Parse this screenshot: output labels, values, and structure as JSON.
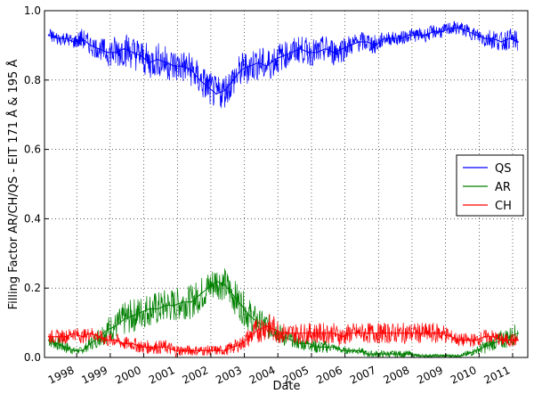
{
  "chart_data": {
    "type": "line",
    "xlabel": "Date",
    "ylabel": "Filling Factor AR/CH/QS - EIT 171 Å & 195 Å",
    "xlim": [
      "1997-01-15",
      "2011-06-15"
    ],
    "ylim": [
      0,
      1.0
    ],
    "x_tick_labels": [
      "1998",
      "1999",
      "2000",
      "2001",
      "2002",
      "2003",
      "2004",
      "2005",
      "2006",
      "2007",
      "2008",
      "2009",
      "2010",
      "2011"
    ],
    "x_ticks": [
      "1998-01-01",
      "1999-01-01",
      "2000-01-01",
      "2001-01-01",
      "2002-01-01",
      "2003-01-01",
      "2004-01-01",
      "2005-01-01",
      "2006-01-01",
      "2007-01-01",
      "2008-01-01",
      "2009-01-01",
      "2010-01-01",
      "2011-01-01"
    ],
    "y_tick_labels": [
      "0.0",
      "0.2",
      "0.4",
      "0.6",
      "0.8",
      "1.0"
    ],
    "y_ticks": [
      0,
      0.2,
      0.4,
      0.6,
      0.8,
      1.0
    ],
    "grid": true,
    "legend_position": "center-right",
    "x": [
      "1997-03-01",
      "1997-06-01",
      "1997-09-01",
      "1997-12-01",
      "1998-03-01",
      "1998-06-01",
      "1998-09-01",
      "1998-12-01",
      "1999-03-01",
      "1999-06-01",
      "1999-09-01",
      "1999-12-01",
      "2000-03-01",
      "2000-06-01",
      "2000-09-01",
      "2000-12-01",
      "2001-03-01",
      "2001-06-01",
      "2001-09-01",
      "2001-12-01",
      "2002-03-01",
      "2002-06-01",
      "2002-09-01",
      "2002-12-01",
      "2003-03-01",
      "2003-06-01",
      "2003-09-01",
      "2003-12-01",
      "2004-03-01",
      "2004-06-01",
      "2004-09-01",
      "2004-12-01",
      "2005-03-01",
      "2005-06-01",
      "2005-09-01",
      "2005-12-01",
      "2006-03-01",
      "2006-06-01",
      "2006-09-01",
      "2006-12-01",
      "2007-03-01",
      "2007-06-01",
      "2007-09-01",
      "2007-12-01",
      "2008-03-01",
      "2008-06-01",
      "2008-09-01",
      "2008-12-01",
      "2009-03-01",
      "2009-06-01",
      "2009-09-01",
      "2009-12-01",
      "2010-03-01",
      "2010-06-01",
      "2010-09-01",
      "2010-12-01",
      "2011-03-01"
    ],
    "series": [
      {
        "name": "QS",
        "color": "#0000ff",
        "values": [
          0.93,
          0.92,
          0.92,
          0.91,
          0.92,
          0.9,
          0.89,
          0.88,
          0.88,
          0.89,
          0.88,
          0.87,
          0.85,
          0.86,
          0.85,
          0.84,
          0.84,
          0.83,
          0.8,
          0.78,
          0.76,
          0.77,
          0.8,
          0.83,
          0.84,
          0.85,
          0.84,
          0.86,
          0.87,
          0.88,
          0.89,
          0.88,
          0.88,
          0.89,
          0.88,
          0.89,
          0.9,
          0.91,
          0.91,
          0.9,
          0.92,
          0.92,
          0.92,
          0.93,
          0.93,
          0.93,
          0.94,
          0.94,
          0.95,
          0.95,
          0.94,
          0.93,
          0.92,
          0.92,
          0.91,
          0.92,
          0.91
        ],
        "spread": [
          0.02,
          0.02,
          0.02,
          0.02,
          0.03,
          0.03,
          0.03,
          0.04,
          0.05,
          0.05,
          0.05,
          0.05,
          0.05,
          0.05,
          0.05,
          0.05,
          0.05,
          0.05,
          0.05,
          0.05,
          0.05,
          0.05,
          0.05,
          0.05,
          0.05,
          0.05,
          0.05,
          0.05,
          0.04,
          0.04,
          0.04,
          0.04,
          0.04,
          0.04,
          0.04,
          0.04,
          0.03,
          0.03,
          0.03,
          0.03,
          0.02,
          0.02,
          0.02,
          0.02,
          0.02,
          0.02,
          0.02,
          0.02,
          0.02,
          0.02,
          0.02,
          0.02,
          0.03,
          0.03,
          0.03,
          0.03,
          0.03
        ]
      },
      {
        "name": "AR",
        "color": "#008000",
        "values": [
          0.05,
          0.04,
          0.03,
          0.02,
          0.02,
          0.04,
          0.06,
          0.08,
          0.09,
          0.11,
          0.12,
          0.13,
          0.14,
          0.14,
          0.15,
          0.15,
          0.16,
          0.16,
          0.18,
          0.2,
          0.22,
          0.21,
          0.18,
          0.15,
          0.12,
          0.1,
          0.09,
          0.08,
          0.06,
          0.05,
          0.04,
          0.04,
          0.03,
          0.03,
          0.03,
          0.02,
          0.02,
          0.02,
          0.01,
          0.01,
          0.01,
          0.01,
          0.01,
          0.01,
          0.005,
          0.005,
          0.005,
          0.005,
          0.005,
          0.005,
          0.01,
          0.02,
          0.03,
          0.04,
          0.05,
          0.06,
          0.07
        ],
        "spread": [
          0.02,
          0.02,
          0.02,
          0.01,
          0.01,
          0.02,
          0.03,
          0.04,
          0.04,
          0.05,
          0.05,
          0.05,
          0.05,
          0.05,
          0.05,
          0.05,
          0.05,
          0.05,
          0.05,
          0.05,
          0.05,
          0.05,
          0.05,
          0.05,
          0.05,
          0.04,
          0.04,
          0.03,
          0.03,
          0.02,
          0.02,
          0.02,
          0.02,
          0.02,
          0.01,
          0.01,
          0.01,
          0.01,
          0.01,
          0.01,
          0.01,
          0.01,
          0.01,
          0.01,
          0.005,
          0.005,
          0.005,
          0.005,
          0.005,
          0.005,
          0.01,
          0.01,
          0.02,
          0.02,
          0.03,
          0.03,
          0.03
        ]
      },
      {
        "name": "CH",
        "color": "#ff0000",
        "values": [
          0.06,
          0.06,
          0.06,
          0.07,
          0.06,
          0.07,
          0.06,
          0.05,
          0.05,
          0.04,
          0.04,
          0.03,
          0.03,
          0.03,
          0.03,
          0.02,
          0.02,
          0.02,
          0.02,
          0.02,
          0.02,
          0.02,
          0.03,
          0.04,
          0.06,
          0.08,
          0.09,
          0.08,
          0.07,
          0.07,
          0.07,
          0.07,
          0.07,
          0.07,
          0.07,
          0.06,
          0.07,
          0.07,
          0.07,
          0.07,
          0.07,
          0.07,
          0.07,
          0.07,
          0.07,
          0.07,
          0.07,
          0.07,
          0.06,
          0.05,
          0.05,
          0.05,
          0.06,
          0.06,
          0.05,
          0.05,
          0.05
        ],
        "spread": [
          0.02,
          0.02,
          0.02,
          0.02,
          0.02,
          0.02,
          0.02,
          0.02,
          0.02,
          0.02,
          0.02,
          0.02,
          0.02,
          0.02,
          0.02,
          0.02,
          0.015,
          0.015,
          0.015,
          0.015,
          0.015,
          0.015,
          0.02,
          0.02,
          0.03,
          0.04,
          0.04,
          0.04,
          0.03,
          0.03,
          0.03,
          0.03,
          0.03,
          0.03,
          0.03,
          0.03,
          0.03,
          0.03,
          0.03,
          0.03,
          0.03,
          0.03,
          0.03,
          0.03,
          0.03,
          0.03,
          0.03,
          0.03,
          0.02,
          0.02,
          0.02,
          0.02,
          0.02,
          0.02,
          0.02,
          0.02,
          0.02
        ]
      }
    ]
  }
}
